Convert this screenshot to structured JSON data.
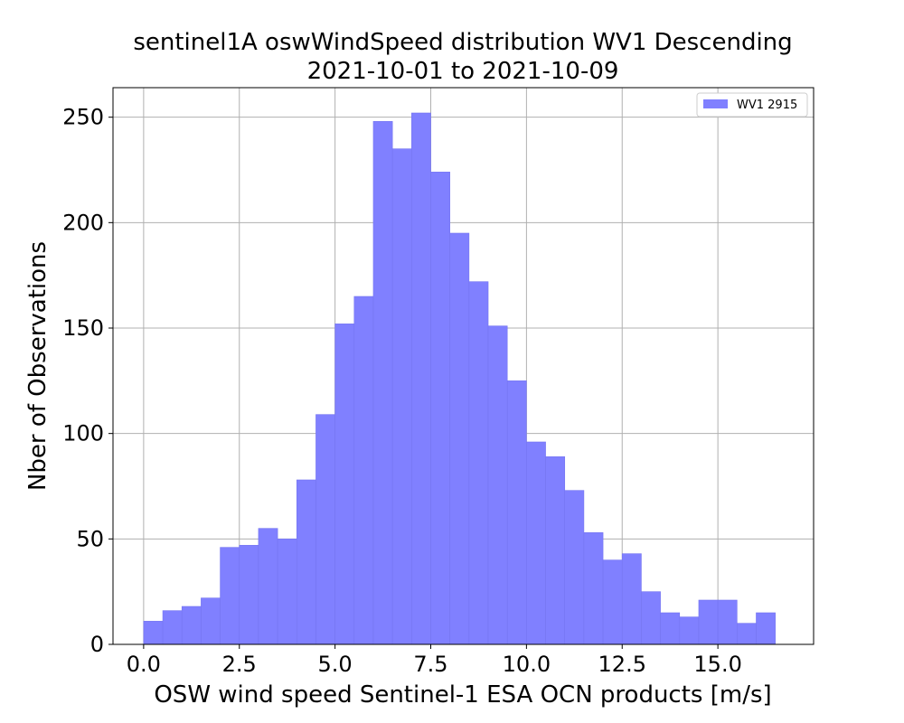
{
  "chart_data": {
    "type": "bar",
    "title": "sentinel1A oswWindSpeed distribution WV1 Descending",
    "subtitle": "2021-10-01 to 2021-10-09",
    "xlabel": "OSW wind speed Sentinel-1 ESA OCN products [m/s]",
    "ylabel": "Nber of Observations",
    "xlim": [
      -0.8,
      17.5
    ],
    "ylim": [
      0,
      264
    ],
    "x_ticks": [
      "0.0",
      "2.5",
      "5.0",
      "7.5",
      "10.0",
      "12.5",
      "15.0"
    ],
    "y_ticks": [
      "0",
      "50",
      "100",
      "150",
      "200",
      "250"
    ],
    "grid": true,
    "legend_position": "top-right",
    "bar_color": "#8080ff",
    "bin_width": 0.5,
    "bin_starts": [
      0.0,
      0.5,
      1.0,
      1.5,
      2.0,
      2.5,
      3.0,
      3.5,
      4.0,
      4.5,
      5.0,
      5.5,
      6.0,
      6.5,
      7.0,
      7.5,
      8.0,
      8.5,
      9.0,
      9.5,
      10.0,
      10.5,
      11.0,
      11.5,
      12.0,
      12.5,
      13.0,
      13.5,
      14.0,
      14.5,
      15.0,
      15.5,
      16.0
    ],
    "series": [
      {
        "name": "WV1 2915",
        "values": [
          11,
          16,
          18,
          22,
          46,
          47,
          55,
          50,
          78,
          109,
          152,
          165,
          248,
          235,
          252,
          224,
          195,
          172,
          151,
          125,
          96,
          89,
          73,
          53,
          40,
          43,
          25,
          15,
          13,
          21,
          21,
          10,
          15
        ]
      }
    ]
  }
}
